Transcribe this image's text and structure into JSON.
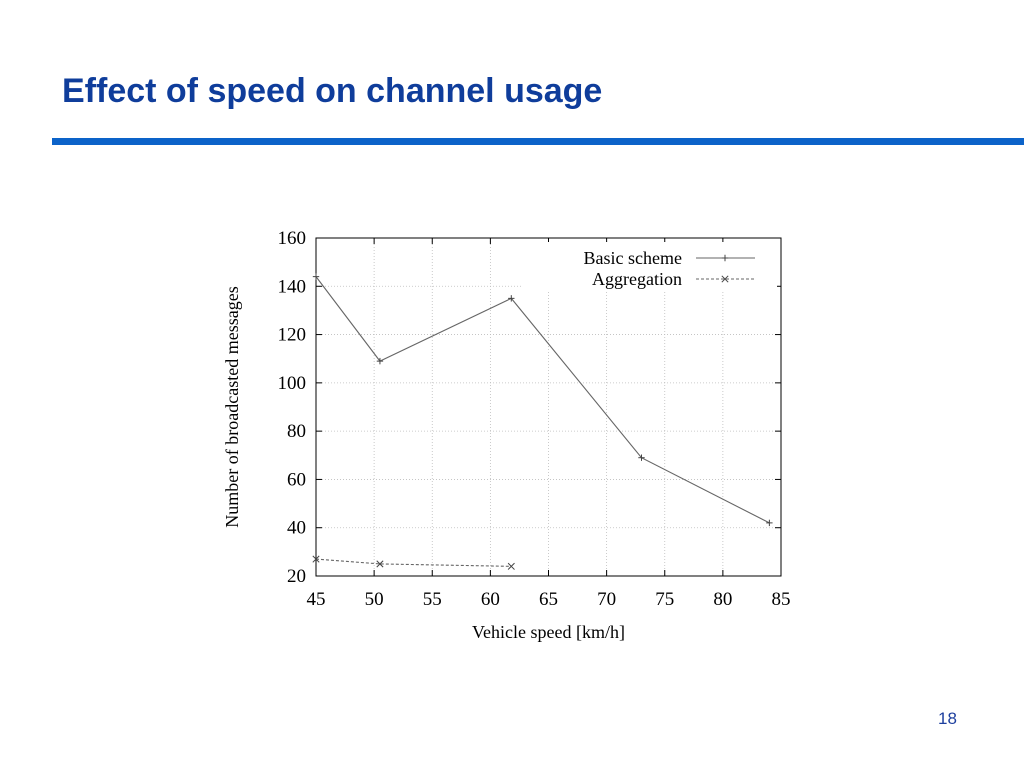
{
  "slide": {
    "title": "Effect of speed on channel usage",
    "page_number": "18",
    "title_color": "#0f3d9b",
    "rule_color": "#0c63c9"
  },
  "chart_data": {
    "type": "line",
    "title": "",
    "xlabel": "Vehicle speed [km/h]",
    "ylabel": "Number of broadcasted messages",
    "xlim": [
      45,
      85
    ],
    "ylim": [
      20,
      160
    ],
    "x_ticks": [
      45,
      50,
      55,
      60,
      65,
      70,
      75,
      80,
      85
    ],
    "y_ticks": [
      20,
      40,
      60,
      80,
      100,
      120,
      140,
      160
    ],
    "grid": true,
    "legend_position": "top-right",
    "series": [
      {
        "name": "Basic scheme",
        "marker": "+",
        "line_style": "solid",
        "x": [
          45,
          50.5,
          61.8,
          73,
          84
        ],
        "y": [
          144,
          109,
          135,
          69,
          42
        ]
      },
      {
        "name": "Aggregation",
        "marker": "x",
        "line_style": "dashed",
        "x": [
          45,
          50.5,
          61.8
        ],
        "y": [
          27,
          25,
          24
        ]
      }
    ]
  }
}
